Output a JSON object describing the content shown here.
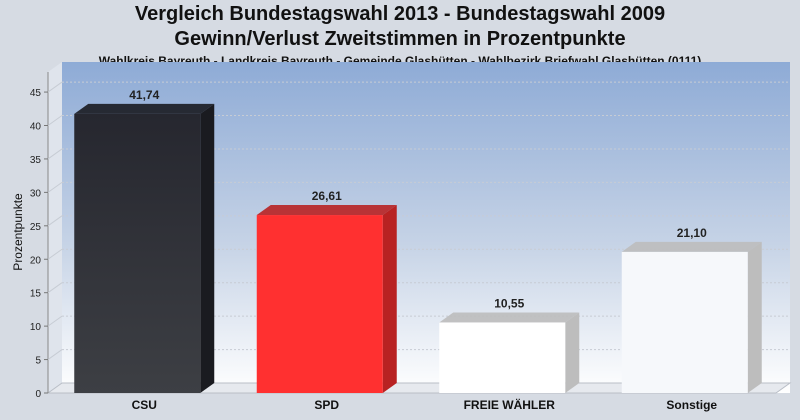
{
  "header": {
    "title_line1": "Vergleich Bundestagswahl 2013 - Bundestagswahl 2009",
    "title_line2": "Gewinn/Verlust Zweitstimmen in Prozentpunkte",
    "subtitle": "Wahlkreis Bayreuth - Landkreis Bayreuth - Gemeinde Glashütten - Wahlbezirk Briefwahl Glashütten (0111)"
  },
  "chart_data": {
    "type": "bar",
    "title": "Vergleich Bundestagswahl 2013 - Bundestagswahl 2009 / Gewinn/Verlust Zweitstimmen in Prozentpunkte",
    "ylabel": "Prozentpunkte",
    "xlabel": "",
    "ylim": [
      0,
      48
    ],
    "yticks": [
      0,
      5,
      10,
      15,
      20,
      25,
      30,
      35,
      40,
      45
    ],
    "grid": true,
    "categories": [
      "CSU",
      "SPD",
      "FREIE WÄHLER",
      "Sonstige"
    ],
    "values": [
      41.74,
      26.61,
      10.55,
      21.1
    ],
    "value_labels": [
      "41,74",
      "26,61",
      "10,55",
      "21,10"
    ],
    "bar_colors": [
      "#2b2d33",
      "#ff3030",
      "#ffffff",
      "#f6f8fb"
    ],
    "bar_side_colors": [
      "#1a1b20",
      "#b82222",
      "#bdbdbd",
      "#bdbdbd"
    ]
  }
}
